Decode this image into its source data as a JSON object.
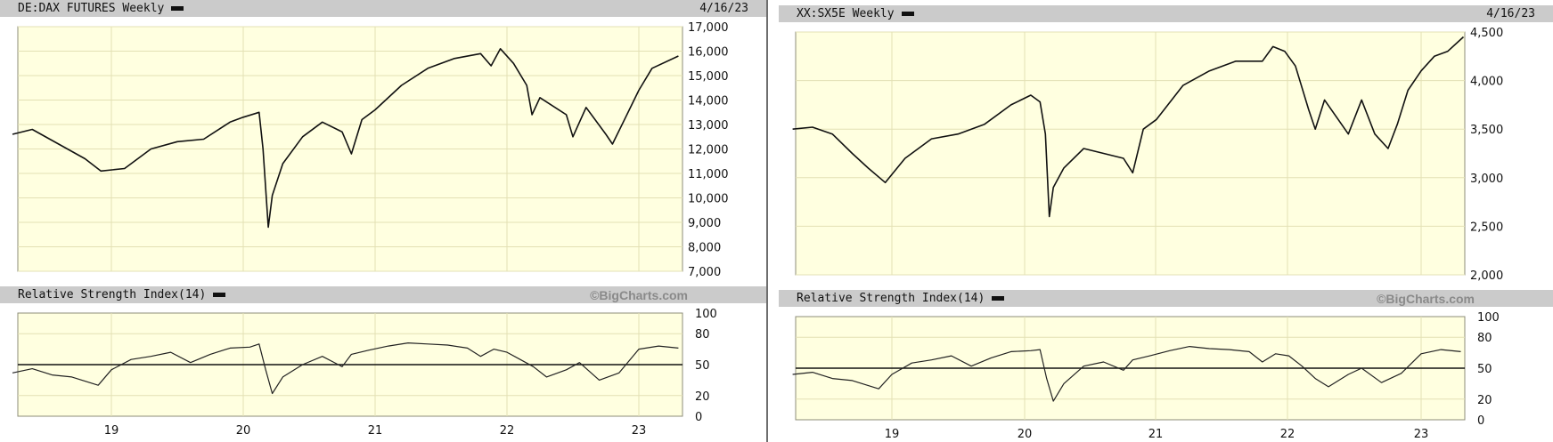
{
  "chart_data": [
    {
      "type": "line",
      "title": "DE:DAX FUTURES Weekly",
      "date": "4/16/23",
      "copyright": "©BigCharts.com",
      "price": {
        "ylim": [
          7000,
          17000
        ],
        "yticks": [
          "7,000",
          "8,000",
          "9,000",
          "10,000",
          "11,000",
          "12,000",
          "13,000",
          "14,000",
          "15,000",
          "16,000",
          "17,000"
        ],
        "x": [
          2018.25,
          2018.4,
          2018.6,
          2018.8,
          2018.92,
          2019.1,
          2019.3,
          2019.5,
          2019.7,
          2019.9,
          2020.0,
          2020.12,
          2020.15,
          2020.19,
          2020.22,
          2020.3,
          2020.45,
          2020.6,
          2020.75,
          2020.82,
          2020.9,
          2021.0,
          2021.2,
          2021.4,
          2021.6,
          2021.8,
          2021.88,
          2021.95,
          2022.05,
          2022.15,
          2022.19,
          2022.25,
          2022.45,
          2022.5,
          2022.6,
          2022.75,
          2022.8,
          2022.9,
          2023.0,
          2023.1,
          2023.3
        ],
        "values": [
          12600,
          12800,
          12200,
          11600,
          11100,
          11200,
          12000,
          12300,
          12400,
          13100,
          13300,
          13500,
          12000,
          8800,
          10100,
          11400,
          12500,
          13100,
          12700,
          11800,
          13200,
          13600,
          14600,
          15300,
          15700,
          15900,
          15400,
          16100,
          15500,
          14600,
          13400,
          14100,
          13400,
          12500,
          13700,
          12600,
          12200,
          13300,
          14400,
          15300,
          15800
        ]
      },
      "rsi": {
        "label": "Relative Strength Index(14)",
        "yticks": [
          "0",
          "20",
          "50",
          "80",
          "100"
        ],
        "x": [
          2018.25,
          2018.4,
          2018.55,
          2018.7,
          2018.9,
          2019.0,
          2019.15,
          2019.3,
          2019.45,
          2019.6,
          2019.75,
          2019.9,
          2020.05,
          2020.12,
          2020.17,
          2020.22,
          2020.3,
          2020.45,
          2020.6,
          2020.75,
          2020.82,
          2020.95,
          2021.1,
          2021.25,
          2021.4,
          2021.55,
          2021.7,
          2021.8,
          2021.9,
          2022.0,
          2022.1,
          2022.2,
          2022.3,
          2022.45,
          2022.55,
          2022.7,
          2022.85,
          2023.0,
          2023.15,
          2023.3
        ],
        "values": [
          42,
          46,
          40,
          38,
          30,
          45,
          55,
          58,
          62,
          52,
          60,
          66,
          67,
          70,
          45,
          22,
          38,
          50,
          58,
          48,
          60,
          64,
          68,
          71,
          70,
          69,
          66,
          58,
          65,
          62,
          55,
          48,
          38,
          45,
          52,
          35,
          42,
          65,
          68,
          66
        ],
        "midline": 50
      },
      "xticks": [
        "19",
        "20",
        "21",
        "22",
        "23"
      ]
    },
    {
      "type": "line",
      "title": "XX:SX5E Weekly",
      "date": "4/16/23",
      "copyright": "©BigCharts.com",
      "price": {
        "ylim": [
          2000,
          4500
        ],
        "yticks": [
          "2,000",
          "2,500",
          "3,000",
          "3,500",
          "4,000",
          "4,500"
        ],
        "x": [
          2018.25,
          2018.4,
          2018.55,
          2018.7,
          2018.82,
          2018.95,
          2019.1,
          2019.3,
          2019.5,
          2019.7,
          2019.9,
          2020.05,
          2020.12,
          2020.16,
          2020.19,
          2020.22,
          2020.3,
          2020.45,
          2020.6,
          2020.75,
          2020.82,
          2020.9,
          2021.0,
          2021.2,
          2021.4,
          2021.6,
          2021.8,
          2021.88,
          2021.97,
          2022.05,
          2022.15,
          2022.2,
          2022.27,
          2022.45,
          2022.55,
          2022.65,
          2022.75,
          2022.82,
          2022.9,
          2023.0,
          2023.1,
          2023.2,
          2023.32
        ],
        "values": [
          3500,
          3520,
          3450,
          3250,
          3100,
          2950,
          3200,
          3400,
          3450,
          3550,
          3750,
          3850,
          3780,
          3450,
          2600,
          2900,
          3100,
          3300,
          3250,
          3200,
          3050,
          3500,
          3600,
          3950,
          4100,
          4200,
          4200,
          4350,
          4300,
          4150,
          3700,
          3500,
          3800,
          3450,
          3800,
          3450,
          3300,
          3550,
          3900,
          4100,
          4250,
          4300,
          4450
        ]
      },
      "rsi": {
        "label": "Relative Strength Index(14)",
        "yticks": [
          "0",
          "20",
          "50",
          "80",
          "100"
        ],
        "x": [
          2018.25,
          2018.4,
          2018.55,
          2018.7,
          2018.9,
          2019.0,
          2019.15,
          2019.3,
          2019.45,
          2019.6,
          2019.75,
          2019.9,
          2020.05,
          2020.12,
          2020.17,
          2020.22,
          2020.3,
          2020.45,
          2020.6,
          2020.75,
          2020.82,
          2020.95,
          2021.1,
          2021.25,
          2021.4,
          2021.55,
          2021.7,
          2021.8,
          2021.9,
          2022.0,
          2022.1,
          2022.2,
          2022.3,
          2022.45,
          2022.55,
          2022.7,
          2022.85,
          2023.0,
          2023.15,
          2023.3
        ],
        "values": [
          44,
          46,
          40,
          38,
          30,
          44,
          55,
          58,
          62,
          52,
          60,
          66,
          67,
          68,
          40,
          18,
          35,
          52,
          56,
          48,
          58,
          62,
          67,
          71,
          69,
          68,
          66,
          56,
          64,
          62,
          52,
          40,
          32,
          44,
          50,
          36,
          45,
          64,
          68,
          66
        ],
        "midline": 50
      },
      "xticks": [
        "19",
        "20",
        "21",
        "22",
        "23"
      ]
    }
  ]
}
